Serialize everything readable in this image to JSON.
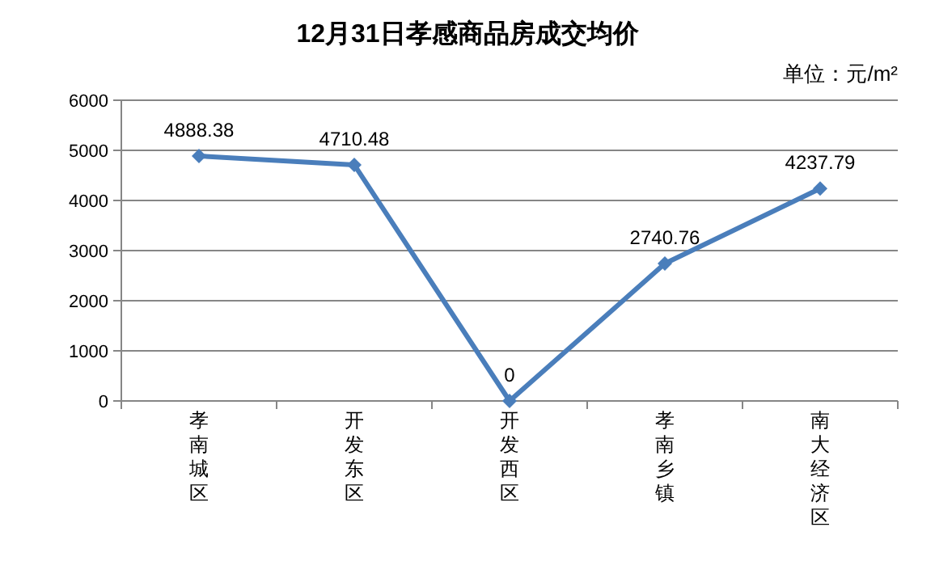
{
  "chart_data": {
    "type": "line",
    "title": "12月31日孝感商品房成交均价",
    "annotations": [
      "单位：元/m²"
    ],
    "categories": [
      "孝南城区",
      "开发东区",
      "开发西区",
      "孝南乡镇",
      "南大经济区"
    ],
    "series": [
      {
        "color": "#4a7ebb",
        "values": [
          4888.38,
          4710.48,
          0,
          2740.76,
          4237.79
        ]
      }
    ],
    "ylim": [
      0,
      6000
    ],
    "yticks": [
      0,
      1000,
      2000,
      3000,
      4000,
      5000,
      6000
    ],
    "grid": "y",
    "marker": "diamond",
    "line_style": "solid",
    "data_labels": true
  }
}
